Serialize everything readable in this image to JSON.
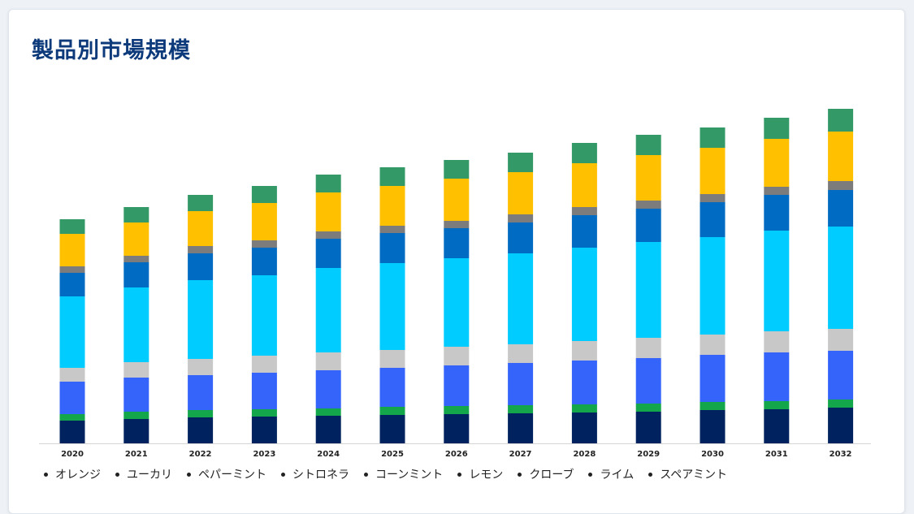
{
  "card": {
    "title": "製品別市場規模"
  },
  "chart_data": {
    "type": "bar",
    "stacked": true,
    "title": "製品別市場規模",
    "xlabel": "",
    "ylabel": "",
    "ylim": [
      0,
      420
    ],
    "grid": false,
    "legend_position": "bottom",
    "categories": [
      "2020",
      "2021",
      "2022",
      "2023",
      "2024",
      "2025",
      "2026",
      "2027",
      "2028",
      "2029",
      "2030",
      "2031",
      "2032"
    ],
    "series": [
      {
        "name": "オレンジ",
        "color": "#00235f",
        "values": [
          28,
          30,
          32,
          33,
          34,
          35,
          36,
          37,
          38,
          39,
          41,
          42,
          44
        ]
      },
      {
        "name": "ユーカリ",
        "color": "#13a64a",
        "values": [
          8,
          9,
          9,
          9,
          9,
          10,
          10,
          10,
          10,
          10,
          10,
          10,
          10
        ]
      },
      {
        "name": "ペパーミント",
        "color": "#3464fa",
        "values": [
          40,
          42,
          43,
          45,
          47,
          48,
          50,
          52,
          54,
          56,
          58,
          60,
          60
        ]
      },
      {
        "name": "シトロネラ",
        "color": "#c8c8c8",
        "values": [
          17,
          19,
          20,
          21,
          22,
          22,
          23,
          23,
          24,
          25,
          25,
          26,
          27
        ]
      },
      {
        "name": "コーンミント",
        "color": "#00ccff",
        "values": [
          88,
          92,
          97,
          99,
          104,
          107,
          109,
          112,
          115,
          118,
          120,
          124,
          126
        ]
      },
      {
        "name": "レモン",
        "color": "#006bc2",
        "values": [
          29,
          31,
          33,
          34,
          36,
          37,
          37,
          38,
          40,
          41,
          43,
          44,
          45
        ]
      },
      {
        "name": "クローブ",
        "color": "#7c7c7c",
        "values": [
          8,
          8,
          9,
          9,
          9,
          9,
          9,
          10,
          10,
          10,
          10,
          10,
          11
        ]
      },
      {
        "name": "ライム",
        "color": "#ffc000",
        "values": [
          40,
          41,
          43,
          46,
          48,
          49,
          52,
          52,
          54,
          56,
          57,
          59,
          61
        ]
      },
      {
        "name": "スペアミント",
        "color": "#339966",
        "values": [
          18,
          19,
          20,
          21,
          22,
          23,
          23,
          24,
          25,
          25,
          25,
          26,
          28
        ]
      }
    ]
  }
}
